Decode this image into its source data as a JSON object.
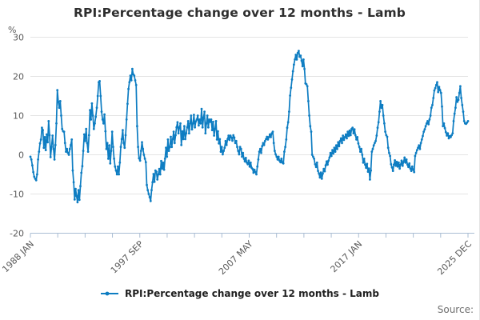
{
  "header": {
    "title": "RPI:Percentage change over 12 months - Lamb",
    "y_unit_label": "%"
  },
  "legend": {
    "series_label": "RPI:Percentage change over 12 months - Lamb"
  },
  "footer": {
    "source_label": "Source:"
  },
  "colors": {
    "line": "#0e7dc2",
    "marker": "#0e7dc2",
    "grid": "#e3e3e3",
    "axis": "#aabdd3",
    "tick_text": "#595959",
    "title_text": "#2e2e2e",
    "legend_text": "#1f1f1f",
    "source_text": "#6f6f6f"
  },
  "chart_data": {
    "type": "line",
    "title": "RPI:Percentage change over 12 months - Lamb",
    "ylabel": "%",
    "xlabel": "",
    "grid": "horizontal",
    "legend_position": "bottom-center",
    "ylim": [
      -20,
      30
    ],
    "y_ticks": [
      30,
      20,
      10,
      0,
      -10,
      -20
    ],
    "x_start": "1988 JAN",
    "x_end": "2025 DEC",
    "frequency": "monthly",
    "x_minor_tick_count": 17,
    "x_tick_labels": [
      {
        "tick_index": 0,
        "label": "1988 JAN"
      },
      {
        "tick_index": 4,
        "label": "1997 SEP"
      },
      {
        "tick_index": 8,
        "label": "2007 MAY"
      },
      {
        "tick_index": 12,
        "label": "2017 JAN"
      },
      {
        "tick_index": 16,
        "label": "2025 DEC"
      }
    ],
    "series": [
      {
        "name": "RPI:Percentage change over 12 months - Lamb",
        "values": [
          -0.5,
          -1.2,
          -2.7,
          -4.4,
          -5.6,
          -6.1,
          -6.5,
          -5,
          -1.2,
          0.8,
          2.9,
          3.9,
          6.9,
          6.3,
          1.8,
          4.5,
          1.2,
          5.2,
          3.2,
          8.6,
          5,
          -0.6,
          2,
          4.9,
          1.5,
          -1.2,
          2.5,
          8,
          16.5,
          13.5,
          12,
          13.7,
          10,
          6.6,
          6,
          5.9,
          3,
          0.8,
          1.5,
          0.5,
          0,
          1.5,
          2.5,
          3.9,
          -4,
          -7,
          -11.4,
          -8.7,
          -10.5,
          -12.1,
          -9,
          -11.5,
          -8,
          -4.6,
          -2.9,
          1,
          5.2,
          3.5,
          6.6,
          3,
          0.8,
          5,
          11.4,
          9,
          13.1,
          10,
          6.6,
          8,
          9.7,
          12,
          15,
          18.5,
          18.8,
          15,
          11,
          9,
          8,
          10.3,
          6,
          1.5,
          3,
          -1,
          2.4,
          -2.2,
          1,
          5.9,
          2,
          -1,
          -3,
          -4,
          -5,
          -3,
          -5,
          -2,
          2,
          4,
          6.3,
          3,
          1.8,
          5,
          9,
          13,
          16.8,
          18.5,
          20.2,
          19,
          21.9,
          20.5,
          20.2,
          19,
          17.8,
          7.3,
          2,
          -0.9,
          -1.5,
          1,
          3.2,
          1.5,
          0,
          -1,
          -1.9,
          -7.7,
          -9,
          -10,
          -10.8,
          -11.8,
          -9,
          -7,
          -4.9,
          -6.9,
          -4,
          -4.3,
          -6.3,
          -5,
          -3.6,
          -5,
          -1.6,
          -3.5,
          -2,
          -3.8,
          -1,
          1.8,
          -0.5,
          3.9,
          1,
          2,
          4.6,
          2,
          4,
          5.9,
          3,
          5,
          7,
          8.3,
          5.5,
          7,
          8,
          2.5,
          6,
          4,
          7.3,
          4,
          5.5,
          7,
          8.6,
          5.5,
          8,
          10,
          6.5,
          8,
          10.2,
          7,
          8.5,
          9,
          10,
          7.5,
          9,
          8,
          11.7,
          7,
          9.5,
          11,
          5.5,
          8,
          10,
          7,
          9,
          8.4,
          9,
          6.3,
          8.4,
          4.9,
          6.6,
          8.6,
          3.9,
          6,
          2.9,
          4,
          0.8,
          2,
          0.1,
          1,
          1.8,
          3.5,
          2.5,
          4,
          4.9,
          3.8,
          4.9,
          4.4,
          3.6,
          5,
          4.4,
          3,
          3.5,
          2,
          1,
          0.1,
          2,
          1.5,
          -0.5,
          0.5,
          -1,
          -1.7,
          -0.8,
          -2,
          -2.4,
          -1.5,
          -3,
          -2,
          -3.3,
          -3.6,
          -4.6,
          -3.8,
          -4.4,
          -5,
          -3,
          -1.2,
          0.8,
          1.5,
          0.5,
          2.2,
          3,
          2.5,
          3.5,
          4,
          4.6,
          3.9,
          4.5,
          5.2,
          4.5,
          5.5,
          5.9,
          3,
          1,
          0.1,
          -0.5,
          -1.2,
          -0.5,
          -1.5,
          -1.9,
          -1,
          -2,
          -2.2,
          0.8,
          2,
          3.9,
          6.9,
          8.3,
          11,
          15.1,
          17.1,
          19.2,
          21.3,
          23,
          24.3,
          25.5,
          24.3,
          26,
          26.5,
          25,
          25.3,
          24,
          22.6,
          24.3,
          21.9,
          18.2,
          18,
          17.5,
          13.7,
          10,
          7.3,
          5.9,
          0,
          -0.5,
          -1,
          -2.4,
          -3.1,
          -2,
          -4.1,
          -4.8,
          -5.8,
          -4.5,
          -6.1,
          -4.8,
          -3.6,
          -4.2,
          -2.7,
          -1.7,
          -2.5,
          -1.5,
          -0.7,
          0.5,
          -0.3,
          1.2,
          0.3,
          1.8,
          0.8,
          2.4,
          1.5,
          3.2,
          2.2,
          3.5,
          4.2,
          3,
          4.9,
          3.8,
          4.5,
          5.2,
          4.2,
          5.9,
          4.8,
          6.2,
          5,
          6.6,
          6.9,
          5.5,
          6.5,
          5,
          3.9,
          4.5,
          2.9,
          2,
          0.8,
          1.5,
          0,
          -2,
          -1,
          -2.5,
          -3.3,
          -2.3,
          -4.3,
          -3.5,
          -6.3,
          -4,
          0.8,
          1.5,
          2.4,
          3,
          3.5,
          4.9,
          6.9,
          8.3,
          11,
          13.7,
          12,
          12.7,
          10,
          8,
          5.9,
          5,
          4.6,
          1.8,
          0.5,
          -0.3,
          -2.4,
          -3.2,
          -4.1,
          -2.5,
          -1.4,
          -2.8,
          -1.8,
          -3,
          -2,
          -3.5,
          -2.5,
          -1.5,
          -2.8,
          -1.8,
          -0.7,
          -2,
          -1.2,
          -2.5,
          -3.1,
          -2.2,
          -3.5,
          -4.1,
          -3,
          -3.8,
          -4.4,
          -0.3,
          0.5,
          1.2,
          1.8,
          2.4,
          1.5,
          3,
          3.9,
          4.8,
          5.9,
          6.5,
          7.3,
          8,
          8.6,
          7.8,
          9,
          10,
          12,
          12.7,
          14.5,
          16.4,
          17,
          17.8,
          18.5,
          16,
          17.3,
          16.5,
          15.8,
          12.3,
          7.3,
          8,
          6.8,
          5.8,
          4.9,
          5.5,
          4.2,
          4.8,
          4.5,
          5,
          5.5,
          8.6,
          10.5,
          12,
          14.7,
          13.5,
          14,
          15.8,
          17.5,
          14.5,
          12.7,
          11,
          8.6,
          8,
          7.9,
          8.2,
          8.6
        ]
      }
    ]
  }
}
